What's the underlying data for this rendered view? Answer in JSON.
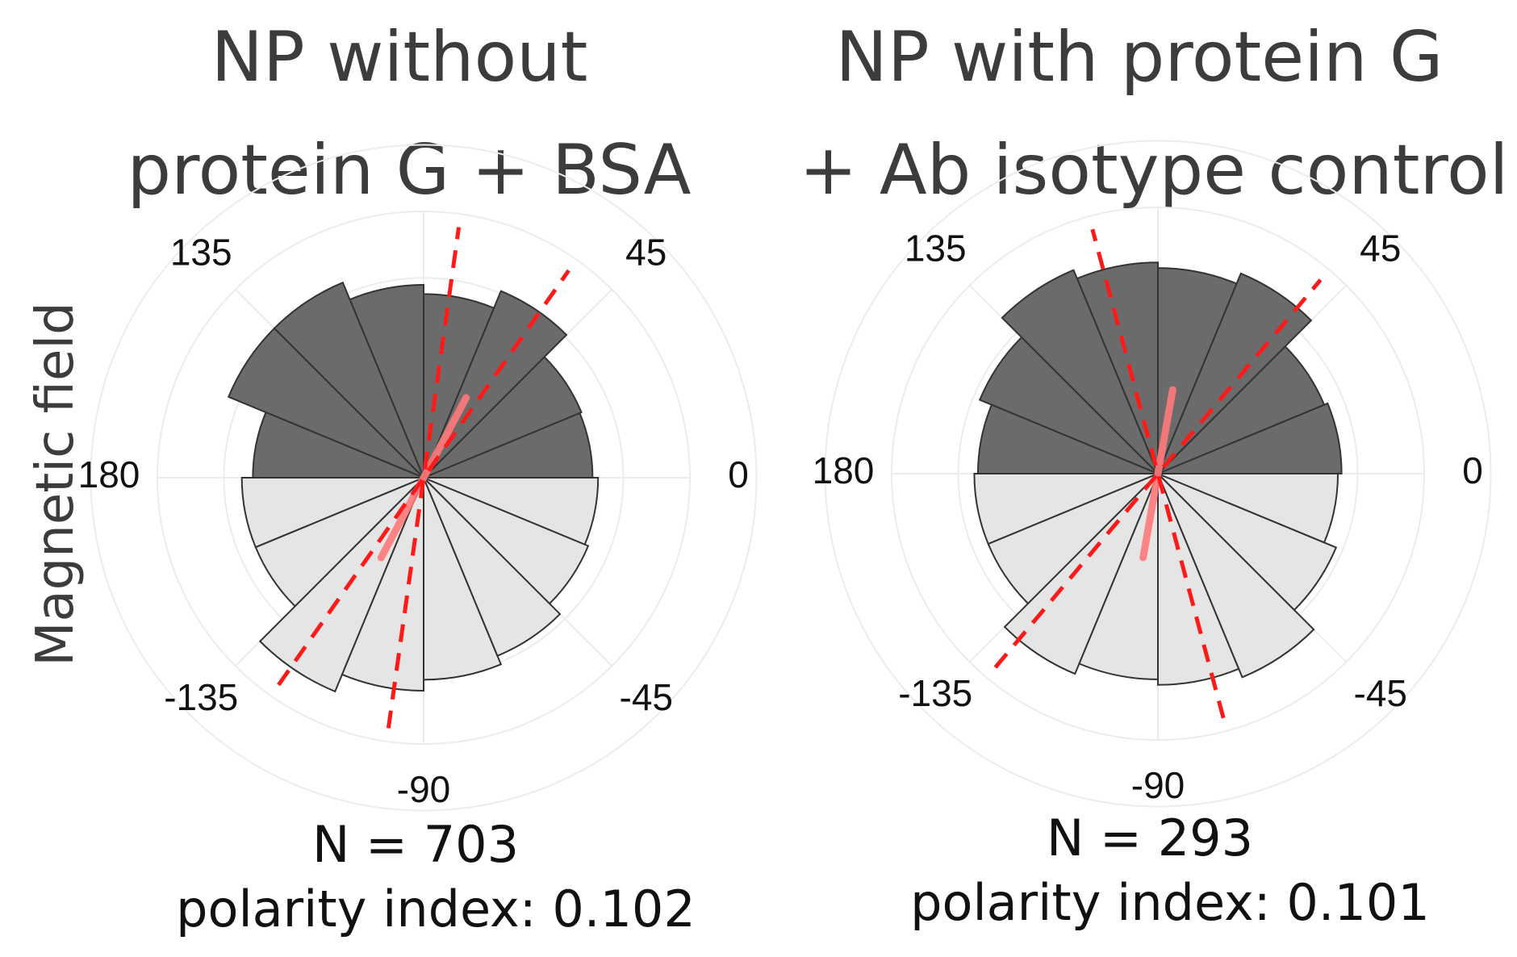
{
  "figure": {
    "ylabel": "Magnetic field",
    "colors": {
      "upper_fill": "#6b6b6b",
      "lower_fill": "#e5e5e5",
      "bar_stroke": "#333333",
      "dashed_line": "#ff1a1a",
      "mean_line": "#ff7a7a",
      "grid": "#ececec",
      "text": "#3c3c3c"
    }
  },
  "chart_data": [
    {
      "type": "polar-histogram",
      "title_lines": [
        "NP without",
        "protein G + BSA"
      ],
      "angle_tick_labels": [
        "0",
        "45",
        "135",
        "180",
        "-135",
        "-90",
        "-45"
      ],
      "angle_ticks_deg": [
        0,
        45,
        135,
        180,
        -135,
        -90,
        -45
      ],
      "bin_width_deg": 22.5,
      "bin_starts_deg": [
        0,
        22.5,
        45,
        67.5,
        90,
        112.5,
        135,
        157.5,
        180,
        202.5,
        225,
        247.5,
        270,
        292.5,
        315,
        337.5
      ],
      "bin_values": [
        0.92,
        0.93,
        1.1,
        1.0,
        1.05,
        1.15,
        1.15,
        0.93,
        0.99,
        0.99,
        1.26,
        1.16,
        1.1,
        1.05,
        0.97,
        0.95
      ],
      "r_max": 1.45,
      "dashed_lines_deg": [
        [
          55,
          235
        ],
        [
          82,
          262
        ]
      ],
      "mean_vector": {
        "angle_deg": 62,
        "length": 0.34
      },
      "n_label": "N = 703",
      "polarity_label": "polarity index: 0.102"
    },
    {
      "type": "polar-histogram",
      "title_lines": [
        "NP with protein G",
        "+ Ab isotype control"
      ],
      "angle_tick_labels": [
        "0",
        "45",
        "135",
        "180",
        "-135",
        "-90",
        "-45"
      ],
      "angle_ticks_deg": [
        0,
        45,
        135,
        180,
        -135,
        -90,
        -45
      ],
      "bin_width_deg": 22.5,
      "bin_starts_deg": [
        0,
        22.5,
        45,
        67.5,
        90,
        112.5,
        135,
        157.5,
        180,
        202.5,
        225,
        247.5,
        270,
        292.5,
        315,
        337.5
      ],
      "bin_values": [
        1.0,
        0.98,
        1.18,
        1.12,
        1.15,
        1.2,
        1.05,
        0.98,
        1.0,
        1.0,
        1.18,
        1.12,
        1.15,
        1.2,
        1.05,
        0.98
      ],
      "r_max": 1.45,
      "dashed_lines_deg": [
        [
          50,
          230
        ],
        [
          105,
          285
        ]
      ],
      "mean_vector": {
        "angle_deg": 80,
        "length": 0.32
      },
      "n_label": "N = 293",
      "polarity_label": "polarity index: 0.101"
    }
  ]
}
